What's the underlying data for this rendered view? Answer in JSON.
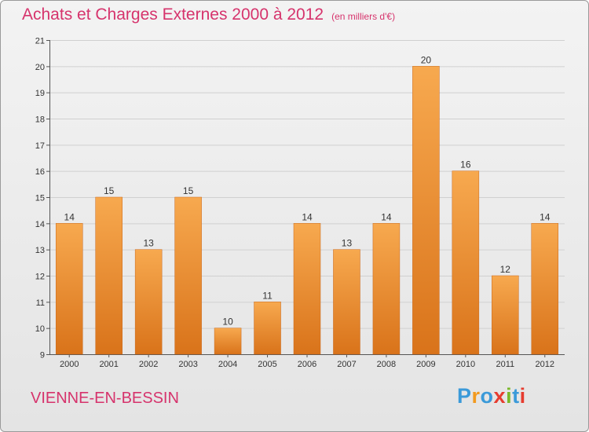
{
  "header": {
    "title": "Achats et Charges Externes 2000 à 2012",
    "unit": "(en milliers d'€)"
  },
  "footer": {
    "commune": "VIENNE-EN-BESSIN",
    "logo_letters": [
      "P",
      "r",
      "o",
      "x",
      "i",
      "t",
      "i"
    ],
    "logo_colors": [
      "#3b9ad9",
      "#f29a1f",
      "#3b9ad9",
      "#e63c2f",
      "#7ab829",
      "#3b9ad9",
      "#e63c2f"
    ]
  },
  "chart_data": {
    "type": "bar",
    "categories": [
      "2000",
      "2001",
      "2002",
      "2003",
      "2004",
      "2005",
      "2006",
      "2007",
      "2008",
      "2009",
      "2010",
      "2011",
      "2012"
    ],
    "values": [
      14,
      15,
      13,
      15,
      10,
      11,
      14,
      13,
      14,
      20,
      16,
      12,
      14
    ],
    "title": "Achats et Charges Externes 2000 à 2012",
    "subtitle": "(en milliers d'€)",
    "ylim": [
      9,
      21
    ],
    "yticks": [
      9,
      10,
      11,
      12,
      13,
      14,
      15,
      16,
      17,
      18,
      19,
      20,
      21
    ],
    "grid": true,
    "bar_color_top": "#f7a94f",
    "bar_color_bottom": "#d9731a"
  }
}
